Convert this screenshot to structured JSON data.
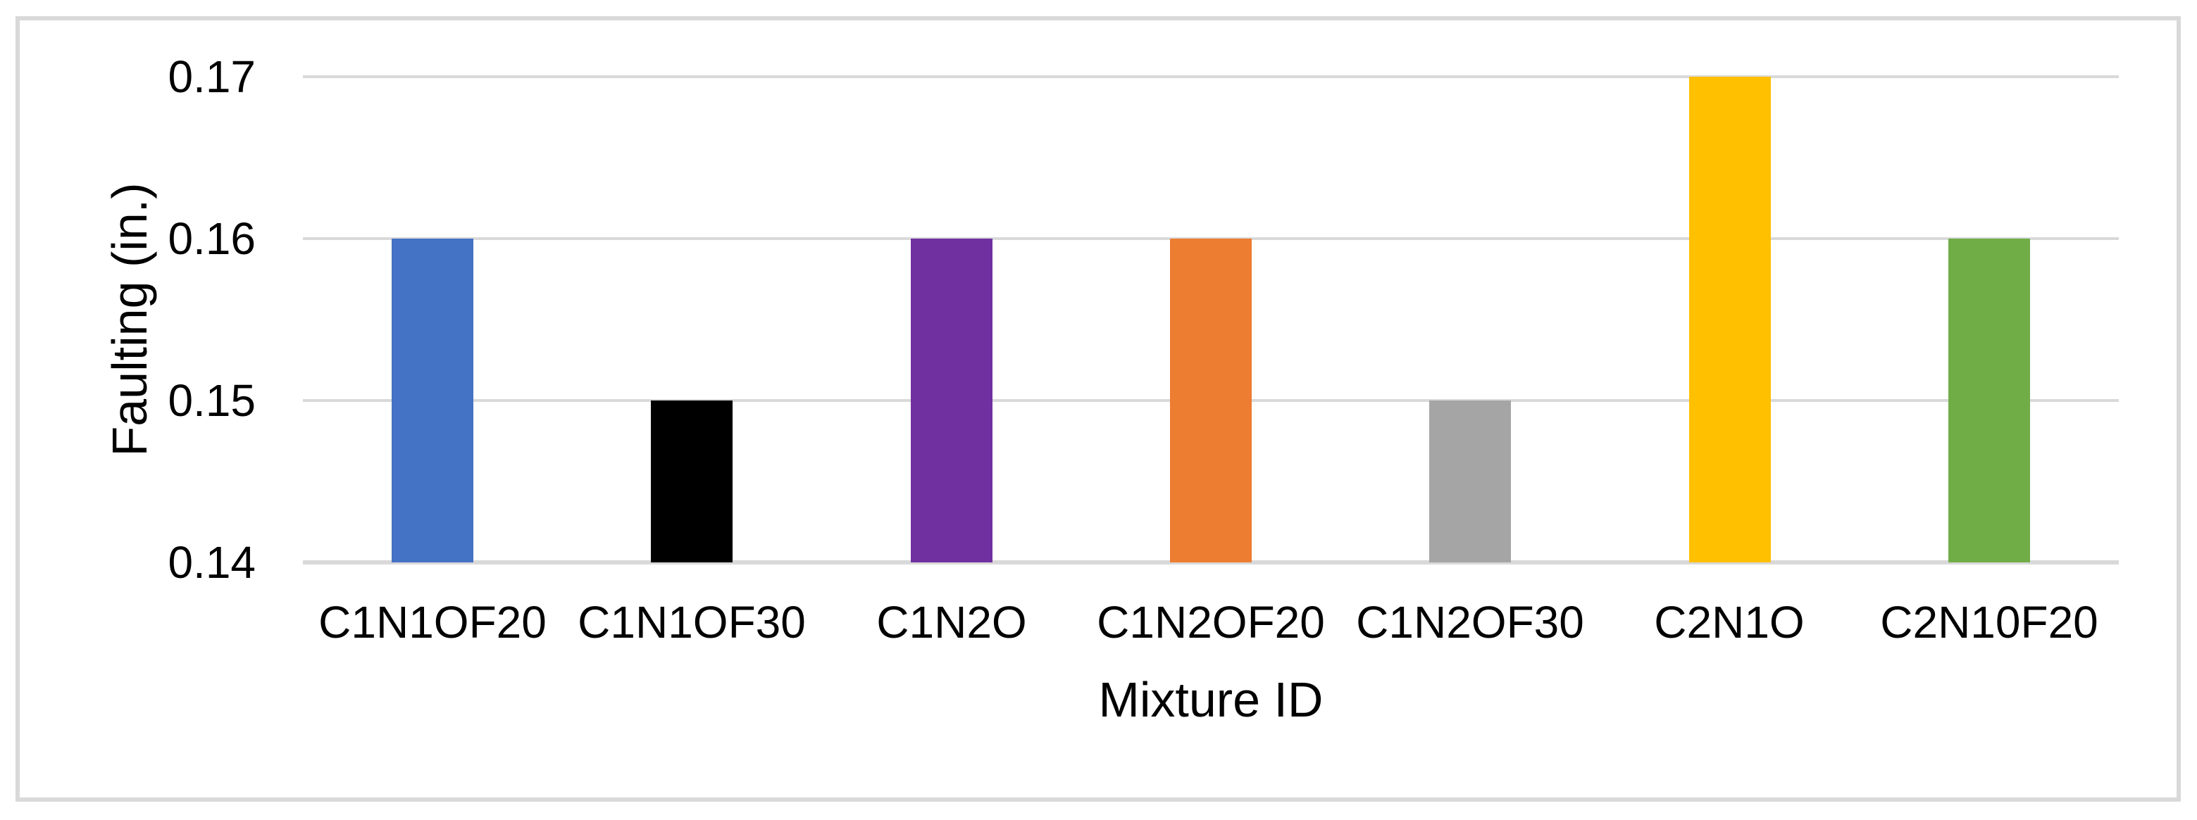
{
  "chart_data": {
    "type": "bar",
    "title": "",
    "xlabel": "Mixture ID",
    "ylabel": "Faulting (in.)",
    "categories": [
      "C1N1OF20",
      "C1N1OF30",
      "C1N2O",
      "C1N2OF20",
      "C1N2OF30",
      "C2N1O",
      "C2N10F20"
    ],
    "values": [
      0.16,
      0.15,
      0.16,
      0.16,
      0.15,
      0.17,
      0.16
    ],
    "bar_colors": [
      "#4472C4",
      "#000000",
      "#7030A0",
      "#ED7D31",
      "#A5A5A5",
      "#FFC000",
      "#70AD47"
    ],
    "ylim": [
      0.14,
      0.17
    ],
    "yticks": [
      0.14,
      0.15,
      0.16,
      0.17
    ],
    "ytick_labels": [
      "0.14",
      "0.15",
      "0.16",
      "0.17"
    ],
    "grid": "horizontal-only",
    "legend": "none",
    "colors": {
      "gridline": "#D9D9D9",
      "axis_line": "#D9D9D9",
      "frame_border": "#D9D9D9",
      "background": "#FFFFFF",
      "text": "#000000"
    }
  }
}
